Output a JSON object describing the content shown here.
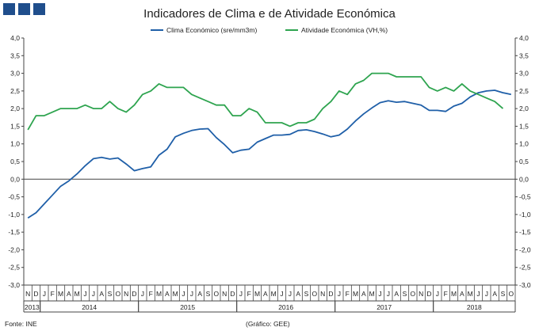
{
  "header": {
    "logo_icon": "gee-logo-icon",
    "title": "Indicadores de Clima e de Atividade Económica"
  },
  "footer": {
    "source": "Fonte: INE",
    "credit": "(Gráfico: GEE)"
  },
  "chart_data": {
    "type": "line",
    "title": "Indicadores de Clima e de Atividade Económica",
    "ylim": [
      -3.0,
      4.0
    ],
    "yticks": [
      "-3,0",
      "-2,5",
      "-2,0",
      "-1,5",
      "-1,0",
      "-0,5",
      "0,0",
      "0,5",
      "1,0",
      "1,5",
      "2,0",
      "2,5",
      "3,0",
      "3,5",
      "4,0"
    ],
    "legend_position": "top",
    "month_labels": [
      "N",
      "D",
      "J",
      "F",
      "M",
      "A",
      "M",
      "J",
      "J",
      "A",
      "S",
      "O",
      "N",
      "D",
      "J",
      "F",
      "M",
      "A",
      "M",
      "J",
      "J",
      "A",
      "S",
      "O",
      "N",
      "D",
      "J",
      "F",
      "M",
      "A",
      "M",
      "J",
      "J",
      "A",
      "S",
      "O",
      "N",
      "D",
      "J",
      "F",
      "M",
      "A",
      "M",
      "J",
      "J",
      "A",
      "S",
      "O",
      "N",
      "D",
      "J",
      "F",
      "M",
      "A",
      "M",
      "J",
      "J",
      "A",
      "S",
      "O"
    ],
    "year_labels": [
      {
        "label": "2013",
        "start": 0,
        "end": 1
      },
      {
        "label": "2014",
        "start": 2,
        "end": 13
      },
      {
        "label": "2015",
        "start": 14,
        "end": 25
      },
      {
        "label": "2016",
        "start": 26,
        "end": 37
      },
      {
        "label": "2017",
        "start": 38,
        "end": 49
      },
      {
        "label": "2018",
        "start": 50,
        "end": 59
      }
    ],
    "series": [
      {
        "name": "Clima Económico (sre/mm3m)",
        "color": "#1f5fa8",
        "values": [
          -1.1,
          -0.95,
          -0.7,
          -0.45,
          -0.2,
          -0.05,
          0.15,
          0.38,
          0.58,
          0.62,
          0.57,
          0.6,
          0.43,
          0.24,
          0.3,
          0.35,
          0.68,
          0.85,
          1.2,
          1.3,
          1.38,
          1.42,
          1.43,
          1.18,
          0.98,
          0.75,
          0.82,
          0.85,
          1.05,
          1.15,
          1.25,
          1.25,
          1.27,
          1.38,
          1.4,
          1.35,
          1.28,
          1.2,
          1.25,
          1.42,
          1.65,
          1.85,
          2.02,
          2.17,
          2.22,
          2.18,
          2.2,
          2.15,
          2.1,
          1.95,
          1.95,
          1.92,
          2.07,
          2.15,
          2.33,
          2.45,
          2.5,
          2.52,
          2.45,
          2.4
        ]
      },
      {
        "name": "Atividade Económica (VH,%)",
        "color": "#2ea44f",
        "values": [
          1.4,
          1.8,
          1.8,
          1.9,
          2.0,
          2.0,
          2.0,
          2.1,
          2.0,
          2.0,
          2.2,
          2.0,
          1.9,
          2.1,
          2.4,
          2.5,
          2.7,
          2.6,
          2.6,
          2.6,
          2.4,
          2.3,
          2.2,
          2.1,
          2.1,
          1.8,
          1.8,
          2.0,
          1.9,
          1.6,
          1.6,
          1.6,
          1.5,
          1.6,
          1.6,
          1.7,
          2.0,
          2.2,
          2.5,
          2.4,
          2.7,
          2.8,
          3.0,
          3.0,
          3.0,
          2.9,
          2.9,
          2.9,
          2.9,
          2.6,
          2.5,
          2.6,
          2.5,
          2.7,
          2.5,
          2.4,
          2.3,
          2.2,
          2.0
        ]
      }
    ]
  }
}
